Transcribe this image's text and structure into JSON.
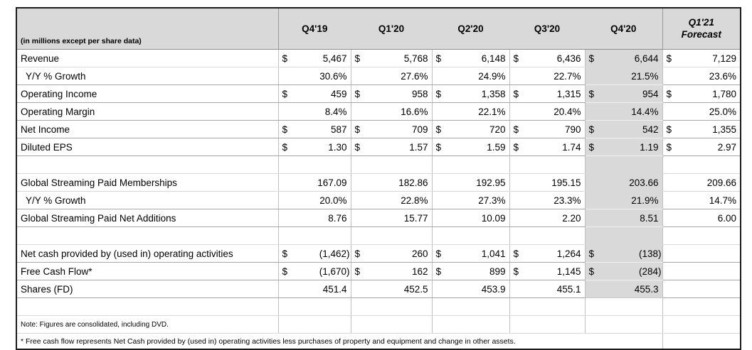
{
  "table": {
    "unit_label": "(in millions except per share data)",
    "currency_symbol": "$",
    "columns": [
      {
        "label": "Q4'19"
      },
      {
        "label": "Q1'20"
      },
      {
        "label": "Q2'20"
      },
      {
        "label": "Q3'20"
      },
      {
        "label": "Q4'20"
      },
      {
        "label": "Q1'21",
        "label2": "Forecast"
      }
    ],
    "rows": [
      {
        "label": "Revenue",
        "format": "usd",
        "values": [
          "5,467",
          "5,768",
          "6,148",
          "6,436",
          "6,644",
          "7,129"
        ]
      },
      {
        "label": "Y/Y % Growth",
        "indent": true,
        "format": "plain",
        "values": [
          "30.6%",
          "27.6%",
          "24.9%",
          "22.7%",
          "21.5%",
          "23.6%"
        ]
      },
      {
        "label": "Operating Income",
        "format": "usd",
        "values": [
          "459",
          "958",
          "1,358",
          "1,315",
          "954",
          "1,780"
        ]
      },
      {
        "label": "Operating Margin",
        "format": "plain",
        "values": [
          "8.4%",
          "16.6%",
          "22.1%",
          "20.4%",
          "14.4%",
          "25.0%"
        ]
      },
      {
        "label": "Net Income",
        "format": "usd",
        "values": [
          "587",
          "709",
          "720",
          "790",
          "542",
          "1,355"
        ]
      },
      {
        "label": "Diluted EPS",
        "format": "usd",
        "values": [
          "1.30",
          "1.57",
          "1.59",
          "1.74",
          "1.19",
          "2.97"
        ]
      },
      {
        "blank": true
      },
      {
        "label": "Global Streaming Paid Memberships",
        "format": "plain",
        "values": [
          "167.09",
          "182.86",
          "192.95",
          "195.15",
          "203.66",
          "209.66"
        ]
      },
      {
        "label": "Y/Y % Growth",
        "indent": true,
        "format": "plain",
        "values": [
          "20.0%",
          "22.8%",
          "27.3%",
          "23.3%",
          "21.9%",
          "14.7%"
        ]
      },
      {
        "label": "Global Streaming Paid Net Additions",
        "format": "plain",
        "values": [
          "8.76",
          "15.77",
          "10.09",
          "2.20",
          "8.51",
          "6.00"
        ]
      },
      {
        "blank": true
      },
      {
        "label": "Net cash provided by (used in) operating activities",
        "format": "usd",
        "values": [
          "(1,462)",
          "260",
          "1,041",
          "1,264",
          "(138)",
          ""
        ]
      },
      {
        "label": "Free Cash Flow*",
        "format": "usd",
        "values": [
          "(1,670)",
          "162",
          "899",
          "1,145",
          "(284)",
          ""
        ]
      },
      {
        "label": "Shares (FD)",
        "format": "plain",
        "values": [
          "451.4",
          "452.5",
          "453.9",
          "455.1",
          "455.3",
          ""
        ]
      },
      {
        "blank": true
      }
    ],
    "note": "Note: Figures are consolidated, including DVD.",
    "footnote": "* Free cash flow represents Net Cash provided by (used in) operating activities less purchases of property and equipment and change in other assets."
  }
}
